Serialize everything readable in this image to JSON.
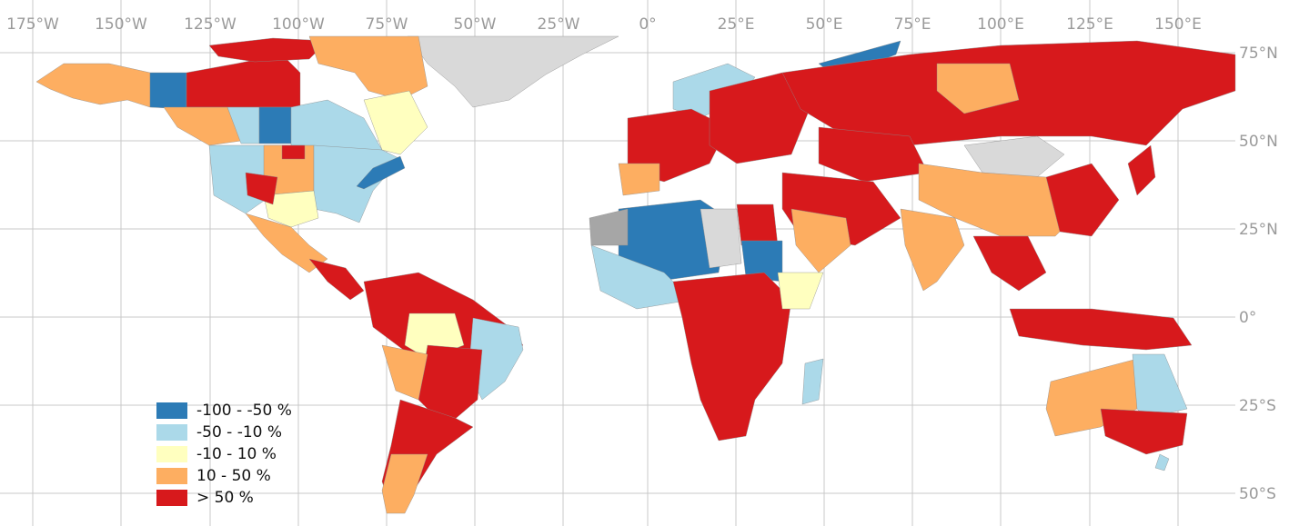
{
  "map": {
    "lon_labels": [
      "175°W",
      "150°W",
      "125°W",
      "100°W",
      "75°W",
      "50°W",
      "25°W",
      "0°",
      "25°E",
      "50°E",
      "75°E",
      "100°E",
      "125°E",
      "150°E"
    ],
    "lat_labels": [
      "75°N",
      "50°N",
      "25°N",
      "0°",
      "25°S",
      "50°S"
    ]
  },
  "legend": {
    "items": [
      {
        "label": "-100 - -50 %",
        "color": "#2c7bb6"
      },
      {
        "label": "-50 - -10 %",
        "color": "#abd9e9"
      },
      {
        "label": "-10 - 10 %",
        "color": "#ffffbf"
      },
      {
        "label": "10 - 50 %",
        "color": "#fdae61"
      },
      {
        "label": "> 50 %",
        "color": "#d7191c"
      }
    ]
  },
  "colors": {
    "nodata": "#d9d9d9",
    "nodata_dark": "#a6a6a6",
    "grid": "#c8c8c8"
  }
}
